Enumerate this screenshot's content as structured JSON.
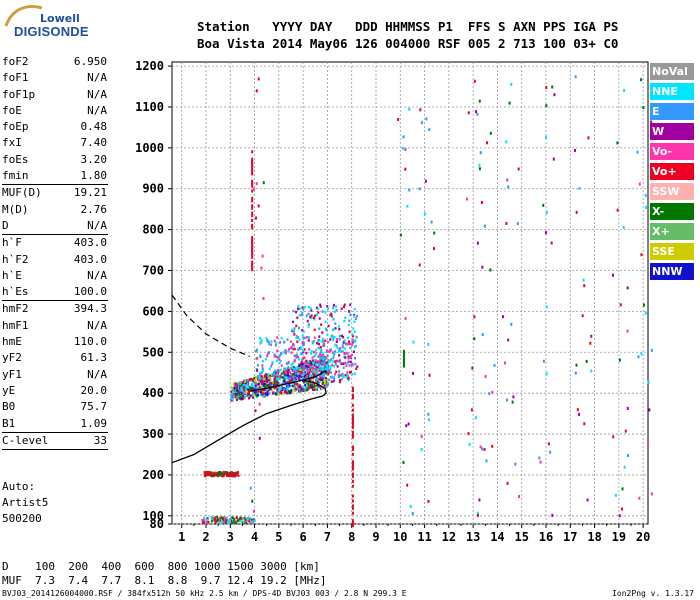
{
  "logo": {
    "line1": "Lowell",
    "line2": "DIGISONDE"
  },
  "header": {
    "line1": "Station   YYYY DAY   DDD HHMMSS P1  FFS S AXN PPS IGA PS",
    "line2": "Boa Vista 2014 May06 126 004000 RSF 005 2 713 100 03+ C0"
  },
  "params": [
    {
      "label": "foF2",
      "value": "6.950"
    },
    {
      "label": "foF1",
      "value": "N/A"
    },
    {
      "label": "foF1p",
      "value": "N/A"
    },
    {
      "label": "foE",
      "value": "N/A"
    },
    {
      "label": "foEp",
      "value": "0.48"
    },
    {
      "label": "fxI",
      "value": "7.40"
    },
    {
      "label": "foEs",
      "value": "3.20"
    },
    {
      "label": "fmin",
      "value": "1.80"
    },
    {
      "sep": true
    },
    {
      "label": "MUF(D)",
      "value": "19.21"
    },
    {
      "label": "M(D)",
      "value": "2.76"
    },
    {
      "label": "D",
      "value": "N/A"
    },
    {
      "sep": true
    },
    {
      "label": "h`F",
      "value": "403.0"
    },
    {
      "label": "h`F2",
      "value": "403.0"
    },
    {
      "label": "h`E",
      "value": "N/A"
    },
    {
      "label": "h`Es",
      "value": "100.0"
    },
    {
      "sep": true
    },
    {
      "label": "hmF2",
      "value": "394.3"
    },
    {
      "label": "hmF1",
      "value": "N/A"
    },
    {
      "label": "hmE",
      "value": "110.0"
    },
    {
      "label": "yF2",
      "value": "61.3"
    },
    {
      "label": "yF1",
      "value": "N/A"
    },
    {
      "label": "yE",
      "value": "20.0"
    },
    {
      "label": "B0",
      "value": "75.7"
    },
    {
      "label": "B1",
      "value": "1.09"
    },
    {
      "sep": true
    },
    {
      "label": "C-level",
      "value": "33"
    },
    {
      "sep": true
    }
  ],
  "auto": {
    "line1": "Auto:",
    "line2": "Artist5",
    "line3": "500200"
  },
  "legend": [
    {
      "label": "NoVal",
      "color": "#999999"
    },
    {
      "label": "NNE",
      "color": "#00e5ff"
    },
    {
      "label": "E",
      "color": "#3399ff"
    },
    {
      "label": "W",
      "color": "#a000a0"
    },
    {
      "label": "Vo-",
      "color": "#ff33aa"
    },
    {
      "label": "Vo+",
      "color": "#ee0022"
    },
    {
      "label": "SSW",
      "color": "#ffb0b0"
    },
    {
      "label": "X-",
      "color": "#007700"
    },
    {
      "label": "X+",
      "color": "#66bb66"
    },
    {
      "label": "SSE",
      "color": "#cccc00"
    },
    {
      "label": "NNW",
      "color": "#1111cc"
    }
  ],
  "muf_table": {
    "row1": "D    100  200  400  600  800 1000 1500 3000 [km]",
    "row2": "MUF  7.3  7.4  7.7  8.1  8.8  9.7 12.4 19.2 [MHz]"
  },
  "footer": {
    "left": "BVJ03_2014126004000.RSF / 384fx512h 50 kHz 2.5 km / DPS-4D BVJ03 003 / 2.8 N 299.3 E",
    "right": "Ion2Png v. 1.3.17"
  },
  "chart_data": {
    "type": "scatter",
    "title": "",
    "xlabel": "",
    "ylabel": "",
    "xlim": [
      0.6,
      20.2
    ],
    "ylim": [
      80,
      1210
    ],
    "x_ticks": [
      1,
      2,
      3,
      4,
      5,
      6,
      7,
      8,
      9,
      10,
      11,
      12,
      13,
      14,
      15,
      16,
      17,
      18,
      19,
      20
    ],
    "y_ticks": [
      80,
      100,
      200,
      300,
      400,
      500,
      600,
      700,
      800,
      900,
      1000,
      1100,
      1200
    ],
    "grid": true,
    "legend_position": "right",
    "profile_solid": {
      "x": [
        0.6,
        1.5,
        2.5,
        3.5,
        4.5,
        5.5,
        6.3,
        6.8,
        6.95,
        6.9,
        6.5,
        6.0
      ],
      "y": [
        230,
        250,
        285,
        320,
        350,
        370,
        385,
        393,
        400,
        412,
        425,
        432
      ]
    },
    "trace_solid_upper": {
      "x": [
        3.8,
        4.5,
        5.5,
        6.5,
        6.95
      ],
      "y": [
        405,
        412,
        425,
        440,
        455
      ]
    },
    "profile_dashed": {
      "x": [
        0.6,
        1.2,
        2.0,
        3.0,
        3.8
      ],
      "y": [
        640,
        590,
        545,
        510,
        490
      ]
    },
    "echo_regions": [
      {
        "name": "F2 trace",
        "x": [
          3.0,
          7.0
        ],
        "y": [
          385,
          490
        ],
        "colors": [
          "Vo+",
          "W",
          "NNE",
          "E",
          "X-",
          "SSE",
          "NNW"
        ]
      },
      {
        "name": "F2 trace upper",
        "x": [
          5.5,
          8.2
        ],
        "y": [
          430,
          620
        ],
        "colors": [
          "W",
          "Vo+",
          "NNE",
          "E"
        ]
      },
      {
        "name": "spread",
        "x": [
          4.0,
          8.0
        ],
        "y": [
          440,
          540
        ],
        "colors": [
          "NNE",
          "E",
          "Vo-"
        ]
      },
      {
        "name": "Es",
        "x": [
          1.8,
          4.0
        ],
        "y": [
          85,
          100
        ],
        "colors": [
          "Vo+",
          "X-",
          "NNE",
          "Vo-"
        ]
      },
      {
        "name": "Es 2hop",
        "x": [
          1.9,
          3.3
        ],
        "y": [
          200,
          210
        ],
        "colors": [
          "X-",
          "Vo+"
        ]
      }
    ],
    "vertical_lines": [
      {
        "x": 3.9,
        "y": [
          700,
          1000
        ],
        "color": "Vo+"
      },
      {
        "x": 8.05,
        "y": [
          80,
          420
        ],
        "color": "Vo+"
      },
      {
        "x": 10.15,
        "y": [
          470,
          515
        ],
        "color": "X-"
      }
    ]
  }
}
